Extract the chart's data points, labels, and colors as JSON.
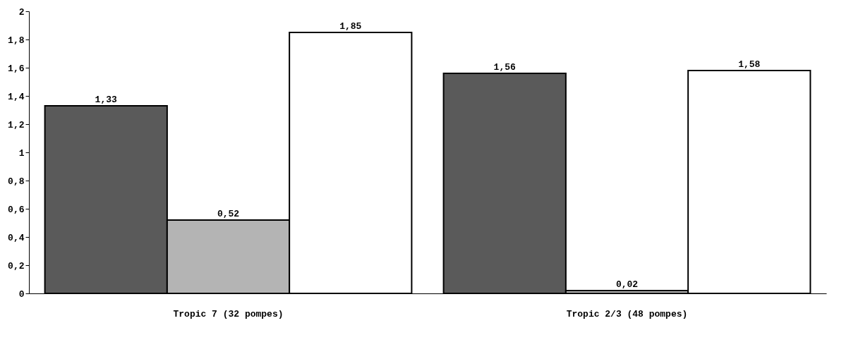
{
  "chart_data": {
    "type": "bar",
    "categories": [
      "Tropic 7 (32 pompes)",
      "Tropic 2/3 (48 pompes)"
    ],
    "series": [
      {
        "color": "#5a5a5a",
        "values": [
          1.33,
          1.56
        ],
        "value_labels": [
          "1,33",
          "1,56"
        ]
      },
      {
        "color": "#b4b4b4",
        "values": [
          0.52,
          0.02
        ],
        "value_labels": [
          "0,52",
          "0,02"
        ]
      },
      {
        "color": "#ffffff",
        "values": [
          1.85,
          1.58
        ],
        "value_labels": [
          "1,85",
          "1,58"
        ]
      }
    ],
    "ylim": [
      0,
      2
    ],
    "yticks": [
      0,
      {
        "value": 0.2,
        "label": "0,2"
      },
      {
        "value": 0.4,
        "label": "0,4"
      },
      {
        "value": 0.6,
        "label": "0,6"
      },
      {
        "value": 0.8,
        "label": "0,8"
      },
      1,
      {
        "value": 1.2,
        "label": "1,2"
      },
      {
        "value": 1.4,
        "label": "1,4"
      },
      {
        "value": 1.6,
        "label": "1,6"
      },
      {
        "value": 1.8,
        "label": "1,8"
      },
      2
    ],
    "grid": false,
    "legend": false
  }
}
